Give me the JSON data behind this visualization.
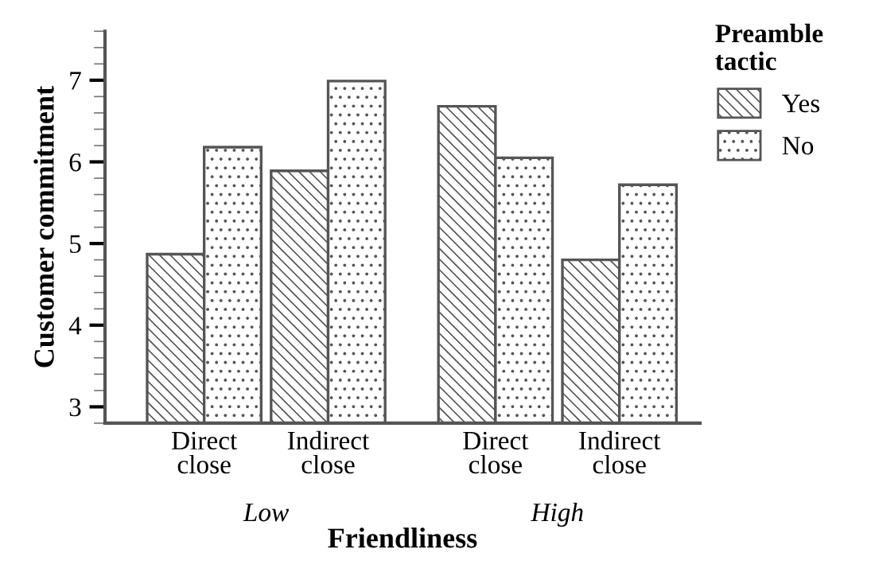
{
  "chart_data": {
    "type": "bar",
    "xlabel": "Friendliness",
    "ylabel": "Customer commitment",
    "legend_title": "Preamble tactic",
    "legend": "top right",
    "categories": [
      "Direct\nclose",
      "Indirect\nclose",
      "Direct\nclose",
      "Indirect\nclose"
    ],
    "series": [
      {
        "name": "Yes",
        "color": "#555555",
        "values": [
          4.87,
          5.89,
          6.68,
          4.8
        ]
      },
      {
        "name": "No",
        "color": "#555555",
        "values": [
          6.18,
          6.99,
          6.05,
          5.72
        ]
      }
    ],
    "ylim": [
      2.8,
      7.6
    ],
    "yticks": [
      3,
      4,
      5,
      6,
      7
    ],
    "grid": false,
    "annotations": [
      "Low",
      "High"
    ]
  }
}
